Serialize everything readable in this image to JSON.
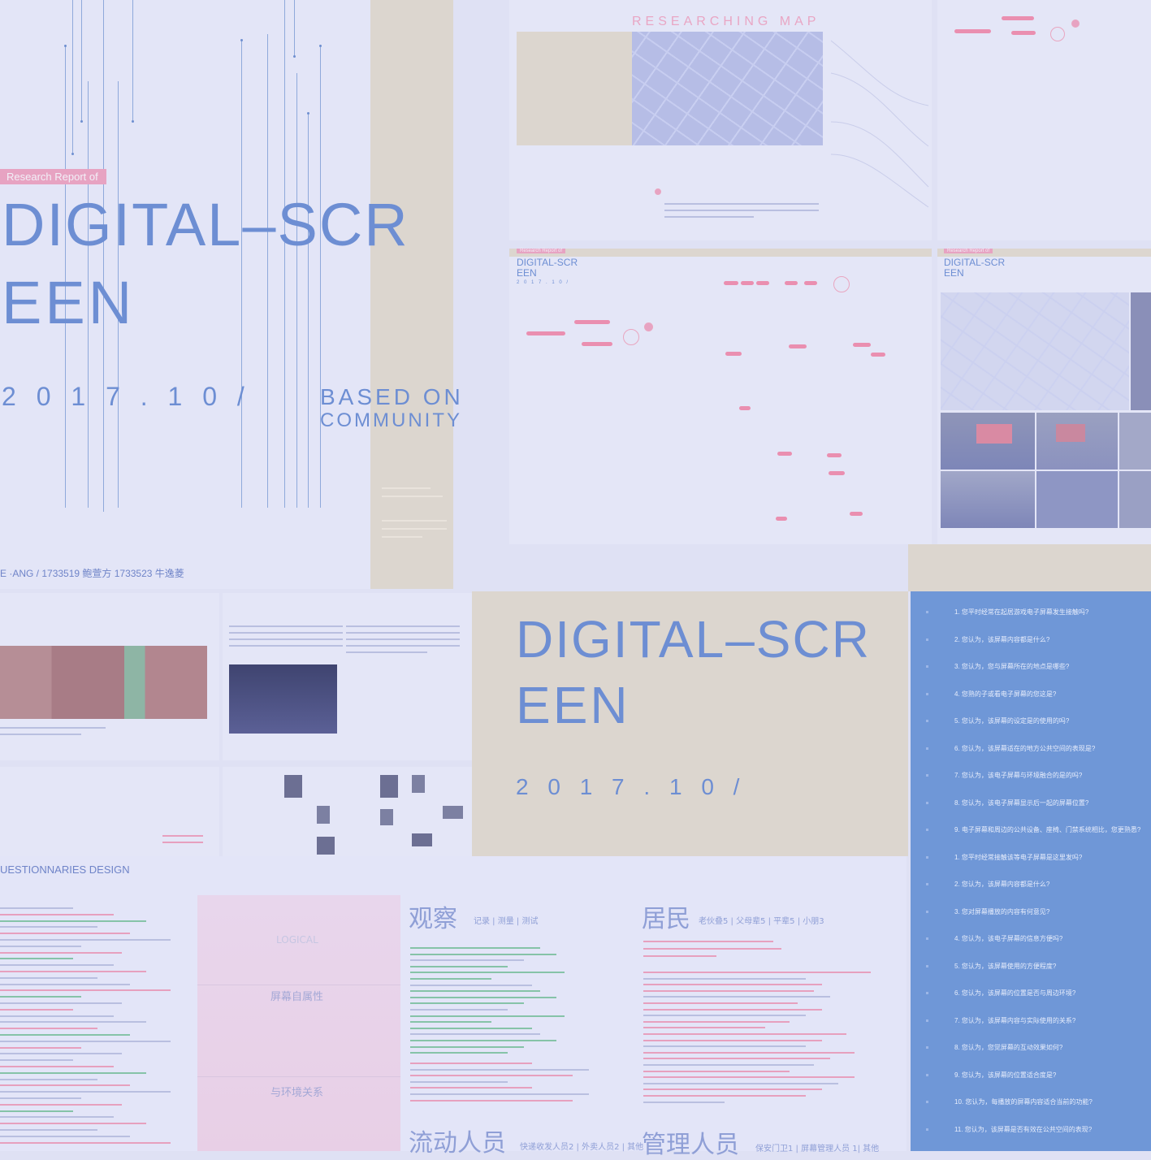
{
  "cover": {
    "tag": "Research Report of",
    "title_line1": "DIGITAL–SCR",
    "title_line2": "EEN",
    "date": "2 0 1 7 . 1 0 /",
    "subtitle_line1": "BASED ON",
    "subtitle_line2": "COMMUNITY",
    "authors": "E ·ANG  /  1733519 鲍萱方 1733523 牛逸菱"
  },
  "map_panel": {
    "title": "RESEARCHING  MAP"
  },
  "journey_panel": {
    "tag": "Research Report of",
    "title_line1": "DIGITAL-SCR",
    "title_line2": "EEN",
    "date": "2 0 1 7 . 1 0 /"
  },
  "photo_panel": {
    "tag": "Research Report of",
    "title_line1": "DIGITAL-SCR",
    "title_line2": "EEN"
  },
  "second_cover": {
    "title_line1": "DIGITAL–SCR",
    "title_line2": "EEN",
    "date": "2 0 1 7 . 1 0 /"
  },
  "questionnaire": {
    "heading": "UESTIONNARIES DESIGN",
    "logical_label": "LOGICAL",
    "row1_label": "屏幕自属性",
    "row2_label": "与环境关系",
    "observe_title": "观察",
    "observe_sub": "记录 | 测量 | 测试",
    "resident_title": "居民",
    "resident_sub": "老伙叠5 | 父母辈5 | 平辈5 | 小朋3",
    "mobile_title": "流动人员",
    "mobile_sub": "快递收发人员2 | 外卖人员2 | 其他",
    "manager_title": "管理人员",
    "manager_sub": "保安门卫1 | 屏幕管理人员 1| 其他"
  },
  "questions": [
    "1. 您平时经常在起居游戏电子屏幕发生接触吗?",
    "2. 您认为，该屏幕内容都是什么?",
    "3. 您认为，您与屏幕所在的地点是哪些?",
    "4. 您熟的子或看电子屏幕的您这是?",
    "5. 您认为，该屏幕的设定是的使用的吗?",
    "6. 您认为，该屏幕适在的地方公共空间的表现是?",
    "7. 您认为，该电子屏幕与环境融合的是的吗?",
    "8. 您认为，该电子屏幕显示后一起的屏幕位置?",
    "9. 电子屏幕和周边的公共设备、座椅、门禁系统相比，您更熟悉?",
    "1. 您平时经常接触该等电子屏幕是这里发吗?",
    "2. 您认为，该屏幕内容都是什么?",
    "3. 您对屏幕播放的内容有何意见?",
    "4. 您认为，该电子屏幕的信息方便吗?",
    "5. 您认为，该屏幕使用的方便程度?",
    "6. 您认为，该屏幕的位置是否与周边环境?",
    "7. 您认为，该屏幕内容与实际使用的关系?",
    "8. 您认为，您觉屏幕的互动效果如何?",
    "9. 您认为，该屏幕的位置适合度是?",
    "10. 您认为，每播放的屏幕内容适合当前的功能?",
    "11. 您认为，该屏幕是否有效在公共空间的表现?"
  ]
}
